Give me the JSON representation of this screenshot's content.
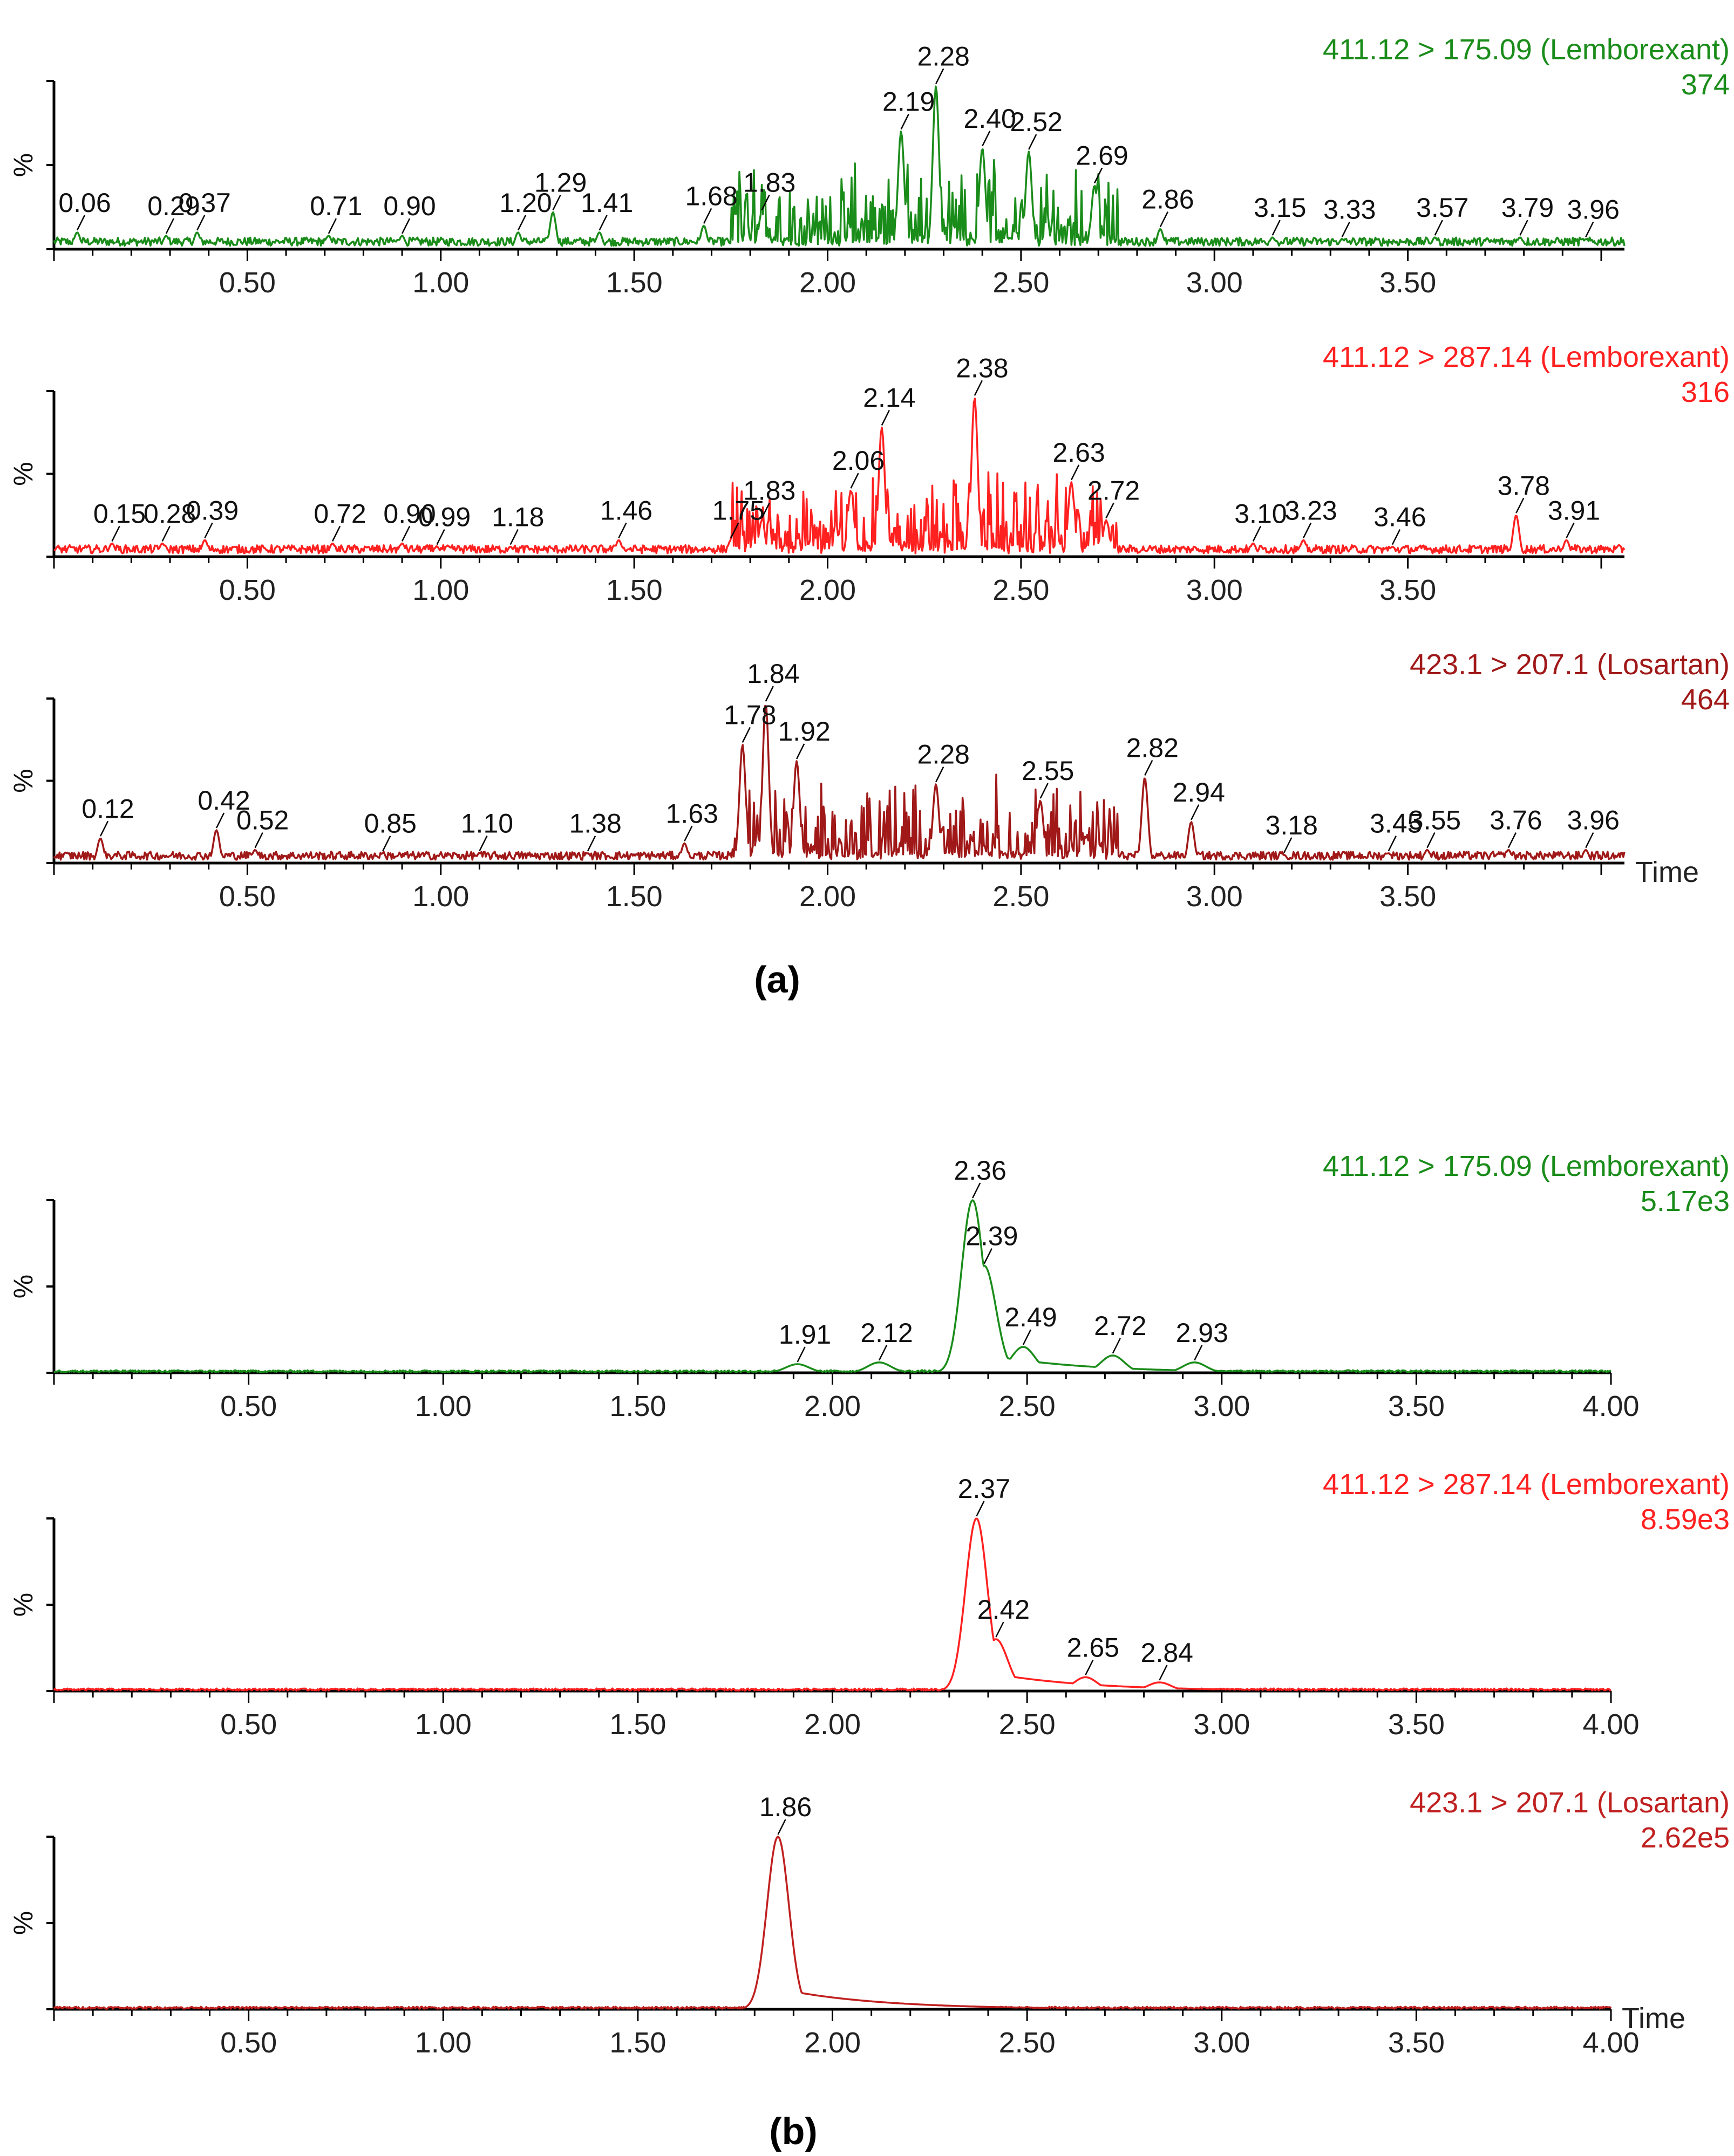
{
  "chart_data": [
    {
      "type": "line",
      "panel": "a",
      "transition": "411.12 > 175.09 (Lemborexant)",
      "intensity": "374",
      "color": "#1a8c1a",
      "ylabel": "%",
      "xlim": [
        0,
        4.0
      ],
      "xticks": [
        "0.50",
        "1.00",
        "1.50",
        "2.00",
        "2.50",
        "3.00",
        "3.50"
      ],
      "peaks": [
        {
          "rt": 0.06,
          "label": "0.06",
          "h": 0.1
        },
        {
          "rt": 0.29,
          "label": "0.29",
          "h": 0.08
        },
        {
          "rt": 0.37,
          "label": "0.37",
          "h": 0.1
        },
        {
          "rt": 0.71,
          "label": "0.71",
          "h": 0.08
        },
        {
          "rt": 0.9,
          "label": "0.90",
          "h": 0.08
        },
        {
          "rt": 1.2,
          "label": "1.20",
          "h": 0.1
        },
        {
          "rt": 1.29,
          "label": "1.29",
          "h": 0.22
        },
        {
          "rt": 1.41,
          "label": "1.41",
          "h": 0.1
        },
        {
          "rt": 1.68,
          "label": "1.68",
          "h": 0.14
        },
        {
          "rt": 1.83,
          "label": "1.83",
          "h": 0.22
        },
        {
          "rt": 2.19,
          "label": "2.19",
          "h": 0.7
        },
        {
          "rt": 2.28,
          "label": "2.28",
          "h": 0.97
        },
        {
          "rt": 2.4,
          "label": "2.40",
          "h": 0.6
        },
        {
          "rt": 2.52,
          "label": "2.52",
          "h": 0.58
        },
        {
          "rt": 2.69,
          "label": "2.69",
          "h": 0.38
        },
        {
          "rt": 2.86,
          "label": "2.86",
          "h": 0.12
        },
        {
          "rt": 3.15,
          "label": "3.15",
          "h": 0.07
        },
        {
          "rt": 3.33,
          "label": "3.33",
          "h": 0.06
        },
        {
          "rt": 3.57,
          "label": "3.57",
          "h": 0.07
        },
        {
          "rt": 3.79,
          "label": "3.79",
          "h": 0.07
        },
        {
          "rt": 3.96,
          "label": "3.96",
          "h": 0.06
        }
      ]
    },
    {
      "type": "line",
      "panel": "a",
      "transition": "411.12 > 287.14 (Lemborexant)",
      "intensity": "316",
      "color": "#ff2020",
      "ylabel": "%",
      "xlim": [
        0,
        4.0
      ],
      "xticks": [
        "0.50",
        "1.00",
        "1.50",
        "2.00",
        "2.50",
        "3.00",
        "3.50"
      ],
      "peaks": [
        {
          "rt": 0.15,
          "label": "0.15",
          "h": 0.08
        },
        {
          "rt": 0.28,
          "label": "0.28",
          "h": 0.08
        },
        {
          "rt": 0.39,
          "label": "0.39",
          "h": 0.1
        },
        {
          "rt": 0.72,
          "label": "0.72",
          "h": 0.08
        },
        {
          "rt": 0.9,
          "label": "0.90",
          "h": 0.08
        },
        {
          "rt": 0.99,
          "label": "0.99",
          "h": 0.06
        },
        {
          "rt": 1.18,
          "label": "1.18",
          "h": 0.06
        },
        {
          "rt": 1.46,
          "label": "1.46",
          "h": 0.1
        },
        {
          "rt": 1.75,
          "label": "1.75",
          "h": 0.1
        },
        {
          "rt": 1.83,
          "label": "1.83",
          "h": 0.22
        },
        {
          "rt": 2.06,
          "label": "2.06",
          "h": 0.4
        },
        {
          "rt": 2.14,
          "label": "2.14",
          "h": 0.78
        },
        {
          "rt": 2.38,
          "label": "2.38",
          "h": 0.96
        },
        {
          "rt": 2.63,
          "label": "2.63",
          "h": 0.45
        },
        {
          "rt": 2.72,
          "label": "2.72",
          "h": 0.22
        },
        {
          "rt": 3.1,
          "label": "3.10",
          "h": 0.08
        },
        {
          "rt": 3.23,
          "label": "3.23",
          "h": 0.1
        },
        {
          "rt": 3.46,
          "label": "3.46",
          "h": 0.06
        },
        {
          "rt": 3.78,
          "label": "3.78",
          "h": 0.25
        },
        {
          "rt": 3.91,
          "label": "3.91",
          "h": 0.1
        }
      ]
    },
    {
      "type": "line",
      "panel": "a",
      "transition": "423.1 > 207.1 (Losartan)",
      "intensity": "464",
      "color": "#a01818",
      "ylabel": "%",
      "xlabel": "Time",
      "xlim": [
        0,
        4.0
      ],
      "xticks": [
        "0.50",
        "1.00",
        "1.50",
        "2.00",
        "2.50",
        "3.00",
        "3.50"
      ],
      "peaks": [
        {
          "rt": 0.12,
          "label": "0.12",
          "h": 0.15
        },
        {
          "rt": 0.42,
          "label": "0.42",
          "h": 0.2
        },
        {
          "rt": 0.52,
          "label": "0.52",
          "h": 0.08
        },
        {
          "rt": 0.85,
          "label": "0.85",
          "h": 0.06
        },
        {
          "rt": 1.1,
          "label": "1.10",
          "h": 0.06
        },
        {
          "rt": 1.38,
          "label": "1.38",
          "h": 0.06
        },
        {
          "rt": 1.63,
          "label": "1.63",
          "h": 0.12
        },
        {
          "rt": 1.78,
          "label": "1.78",
          "h": 0.72
        },
        {
          "rt": 1.84,
          "label": "1.84",
          "h": 0.97
        },
        {
          "rt": 1.92,
          "label": "1.92",
          "h": 0.62
        },
        {
          "rt": 2.28,
          "label": "2.28",
          "h": 0.48
        },
        {
          "rt": 2.55,
          "label": "2.55",
          "h": 0.38
        },
        {
          "rt": 2.82,
          "label": "2.82",
          "h": 0.52
        },
        {
          "rt": 2.94,
          "label": "2.94",
          "h": 0.25
        },
        {
          "rt": 3.18,
          "label": "3.18",
          "h": 0.05
        },
        {
          "rt": 3.45,
          "label": "3.45",
          "h": 0.06
        },
        {
          "rt": 3.55,
          "label": "3.55",
          "h": 0.08
        },
        {
          "rt": 3.76,
          "label": "3.76",
          "h": 0.08
        },
        {
          "rt": 3.96,
          "label": "3.96",
          "h": 0.08
        }
      ]
    },
    {
      "type": "line",
      "panel": "b",
      "transition": "411.12 > 175.09 (Lemborexant)",
      "intensity": "5.17e3",
      "color": "#1a8c1a",
      "ylabel": "%",
      "xlim": [
        0,
        4.0
      ],
      "xticks": [
        "0.50",
        "1.00",
        "1.50",
        "2.00",
        "2.50",
        "3.00",
        "3.50",
        "4.00"
      ],
      "peaks": [
        {
          "rt": 1.91,
          "label": "1.91",
          "h": 0.05
        },
        {
          "rt": 2.12,
          "label": "2.12",
          "h": 0.06
        },
        {
          "rt": 2.36,
          "label": "2.36",
          "h": 1.0
        },
        {
          "rt": 2.39,
          "label": "2.39",
          "h": 0.62
        },
        {
          "rt": 2.49,
          "label": "2.49",
          "h": 0.15
        },
        {
          "rt": 2.72,
          "label": "2.72",
          "h": 0.1
        },
        {
          "rt": 2.93,
          "label": "2.93",
          "h": 0.06
        }
      ]
    },
    {
      "type": "line",
      "panel": "b",
      "transition": "411.12 > 287.14 (Lemborexant)",
      "intensity": "8.59e3",
      "color": "#ff2020",
      "ylabel": "%",
      "xlim": [
        0,
        4.0
      ],
      "xticks": [
        "0.50",
        "1.00",
        "1.50",
        "2.00",
        "2.50",
        "3.00",
        "3.50",
        "4.00"
      ],
      "peaks": [
        {
          "rt": 2.37,
          "label": "2.37",
          "h": 1.0
        },
        {
          "rt": 2.42,
          "label": "2.42",
          "h": 0.3
        },
        {
          "rt": 2.65,
          "label": "2.65",
          "h": 0.08
        },
        {
          "rt": 2.84,
          "label": "2.84",
          "h": 0.05
        }
      ]
    },
    {
      "type": "line",
      "panel": "b",
      "transition": "423.1 > 207.1 (Losartan)",
      "intensity": "2.62e5",
      "color": "#c02020",
      "ylabel": "%",
      "xlabel": "Time",
      "xlim": [
        0,
        4.0
      ],
      "xticks": [
        "0.50",
        "1.00",
        "1.50",
        "2.00",
        "2.50",
        "3.00",
        "3.50",
        "4.00"
      ],
      "peaks": [
        {
          "rt": 1.86,
          "label": "1.86",
          "h": 1.0
        }
      ]
    }
  ],
  "panel_labels": [
    "(a)",
    "(b)"
  ]
}
